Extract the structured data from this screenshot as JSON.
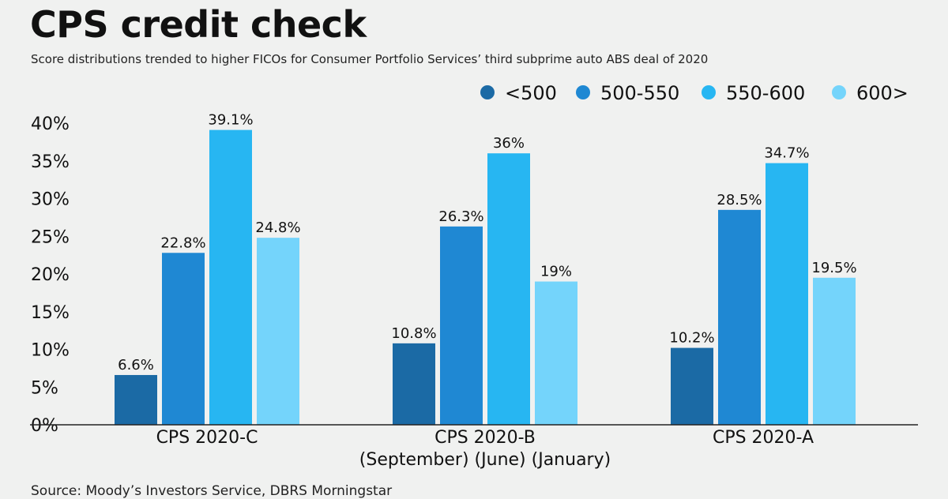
{
  "header": {
    "title": "CPS credit check",
    "subtitle": "Score distributions trended to higher FICOs for Consumer Portfolio Services’ third subprime auto ABS deal of 2020"
  },
  "footer": {
    "source": "Source: Moody’s Investors Service, DBRS Morningstar"
  },
  "chart_data": {
    "type": "bar",
    "title": "CPS credit check",
    "categories": [
      "CPS 2020-C",
      "CPS 2020-B",
      "CPS 2020-A"
    ],
    "xlabel": "(September) (June) (January)",
    "ylabel": "",
    "ylim": [
      0,
      40
    ],
    "yticks": [
      "0%",
      "5%",
      "10%",
      "15%",
      "20%",
      "25%",
      "30%",
      "35%",
      "40%"
    ],
    "ytick_values": [
      0,
      5,
      10,
      15,
      20,
      25,
      30,
      35,
      40
    ],
    "legend_position": "top-right",
    "grid": false,
    "series": [
      {
        "name": "<500",
        "color": "#1b6aa5",
        "values": [
          6.6,
          10.8,
          10.2
        ],
        "labels": [
          "6.6%",
          "10.8%",
          "10.2%"
        ]
      },
      {
        "name": "500-550",
        "color": "#1f88d3",
        "values": [
          22.8,
          26.3,
          28.5
        ],
        "labels": [
          "22.8%",
          "26.3%",
          "28.5%"
        ]
      },
      {
        "name": "550-600",
        "color": "#27b6f2",
        "values": [
          39.1,
          36,
          34.7
        ],
        "labels": [
          "39.1%",
          "36%",
          "34.7%"
        ]
      },
      {
        "name": "600>",
        "color": "#74d4fb",
        "values": [
          24.8,
          19,
          19.5
        ],
        "labels": [
          "24.8%",
          "19%",
          "19.5%"
        ]
      }
    ]
  }
}
